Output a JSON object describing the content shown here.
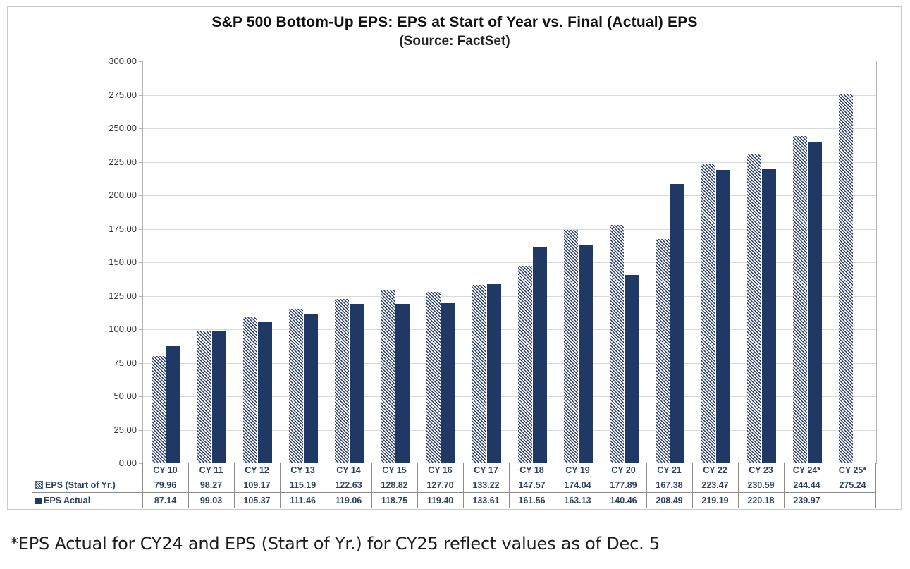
{
  "figure": {
    "title": "S&P 500 Bottom-Up EPS: EPS at Start of Year vs. Final (Actual) EPS",
    "subtitle": "(Source: FactSet)",
    "footnote": "*EPS Actual for CY24 and EPS (Start of Yr.) for CY25 reflect values as of Dec. 5"
  },
  "chart_data": {
    "type": "bar",
    "title": "S&P 500 Bottom-Up EPS: EPS at Start of Year vs. Final (Actual) EPS",
    "subtitle": "(Source: FactSet)",
    "categories": [
      "CY 10",
      "CY 11",
      "CY 12",
      "CY 13",
      "CY 14",
      "CY 15",
      "CY 16",
      "CY 17",
      "CY 18",
      "CY 19",
      "CY 20",
      "CY 21",
      "CY 22",
      "CY 23",
      "CY 24*",
      "CY 25*"
    ],
    "series": [
      {
        "name": "EPS (Start of Yr.)",
        "style": "hatched",
        "values": [
          79.96,
          98.27,
          109.17,
          115.19,
          122.63,
          128.82,
          127.7,
          133.22,
          147.57,
          174.04,
          177.89,
          167.38,
          223.47,
          230.59,
          244.44,
          275.24
        ]
      },
      {
        "name": "EPS Actual",
        "style": "solid",
        "values": [
          87.14,
          99.03,
          105.37,
          111.46,
          119.06,
          118.75,
          119.4,
          133.61,
          161.56,
          163.13,
          140.46,
          208.49,
          219.19,
          220.18,
          239.97,
          null
        ]
      }
    ],
    "xlabel": "",
    "ylabel": "",
    "ylim": [
      0,
      300
    ],
    "ytick_step": 25,
    "yticks": [
      0,
      25,
      50,
      75,
      100,
      125,
      150,
      175,
      200,
      225,
      250,
      275,
      300
    ],
    "ytick_format": "two_decimals",
    "grid": true,
    "legend_position": "table-left-of-data-table",
    "colors": {
      "solid_bar": "#1f3864",
      "hatch_foreground": "#27396a",
      "gridline": "#d9d9d9",
      "table_text": "#2f3f63"
    }
  }
}
